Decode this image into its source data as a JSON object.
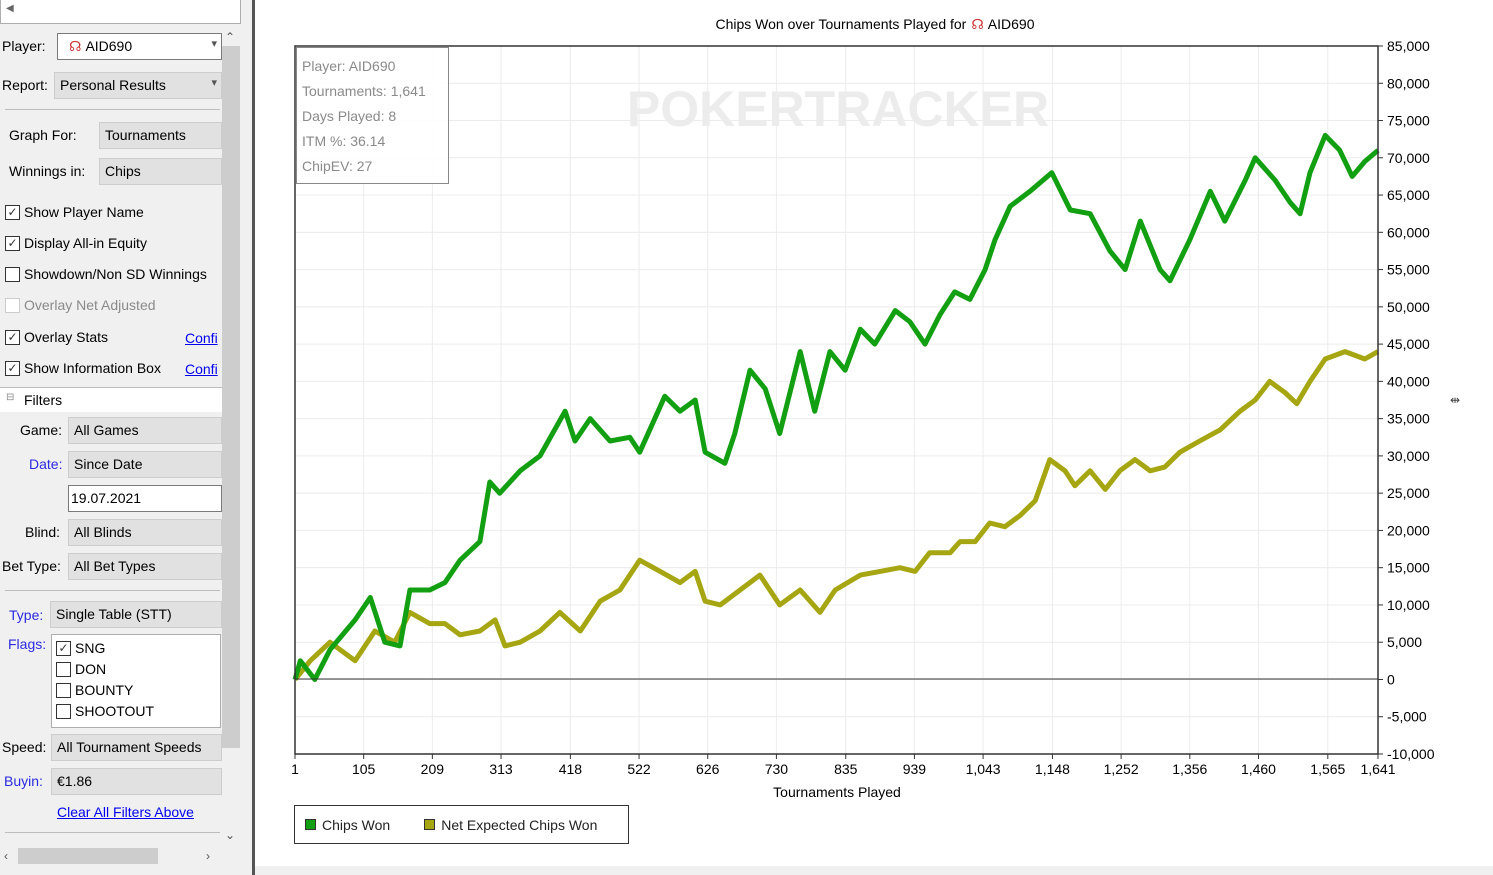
{
  "sidebar": {
    "player_label": "Player:",
    "player_value": "AID690",
    "report_label": "Report:",
    "report_value": "Personal Results",
    "graph_for_label": "Graph For:",
    "graph_for_value": "Tournaments",
    "winnings_in_label": "Winnings in:",
    "winnings_in_value": "Chips",
    "options": [
      {
        "label": "Show Player Name",
        "checked": true,
        "enabled": true
      },
      {
        "label": "Display All-in Equity",
        "checked": true,
        "enabled": true
      },
      {
        "label": "Showdown/Non SD Winnings",
        "checked": false,
        "enabled": true
      },
      {
        "label": "Overlay Net Adjusted",
        "checked": false,
        "enabled": false
      },
      {
        "label": "Overlay Stats",
        "checked": true,
        "enabled": true
      },
      {
        "label": "Show Information Box",
        "checked": true,
        "enabled": true
      }
    ],
    "configure_link": "Confi",
    "filters_header": "Filters",
    "game_label": "Game:",
    "game_value": "All Games",
    "date_label": "Date:",
    "date_value": "Since Date",
    "date_input": "19.07.2021",
    "blind_label": "Blind:",
    "blind_value": "All Blinds",
    "bet_type_label": "Bet Type:",
    "bet_type_value": "All Bet Types",
    "type_label": "Type:",
    "type_value": "Single Table (STT)",
    "flags_label": "Flags:",
    "flags": [
      {
        "label": "SNG",
        "checked": true
      },
      {
        "label": "DON",
        "checked": false
      },
      {
        "label": "BOUNTY",
        "checked": false
      },
      {
        "label": "SHOOTOUT",
        "checked": false
      }
    ],
    "speed_label": "Speed:",
    "speed_value": "All Tournament Speeds",
    "buyin_label": "Buyin:",
    "buyin_value": "€1.86",
    "clear_filters": "Clear All Filters Above"
  },
  "info_box": [
    "Player: AID690",
    "Tournaments: 1,641",
    "Days Played: 8",
    "ITM %: 36.14",
    "ChipEV: 27"
  ],
  "watermark": "POKERTRACKER",
  "colors": {
    "chips_won": "#12a012",
    "net_expected": "#a6a612"
  },
  "chart_data": {
    "type": "line",
    "title": "Chips Won over Tournaments Played for",
    "title_player": "AID690",
    "xlabel": "Tournaments Played",
    "ylabel": "",
    "xlim": [
      1,
      1641
    ],
    "ylim": [
      -10000,
      85000
    ],
    "xticks": [
      1,
      105,
      209,
      313,
      418,
      522,
      626,
      730,
      835,
      939,
      1043,
      1148,
      1252,
      1356,
      1460,
      1565,
      1641
    ],
    "xtick_labels": [
      "1",
      "105",
      "209",
      "313",
      "418",
      "522",
      "626",
      "730",
      "835",
      "939",
      "1,043",
      "1,148",
      "1,252",
      "1,356",
      "1,460",
      "1,565",
      "1,641"
    ],
    "yticks": [
      85000,
      80000,
      75000,
      70000,
      65000,
      60000,
      55000,
      50000,
      45000,
      40000,
      35000,
      30000,
      25000,
      20000,
      15000,
      10000,
      5000,
      0,
      -5000,
      -10000
    ],
    "ytick_labels": [
      "85,000",
      "80,000",
      "75,000",
      "70,000",
      "65,000",
      "60,000",
      "55,000",
      "50,000",
      "45,000",
      "40,000",
      "35,000",
      "30,000",
      "25,000",
      "20,000",
      "15,000",
      "10,000",
      "5,000",
      "0",
      "-5,000",
      "-10,000"
    ],
    "grid": true,
    "legend": "bottom-left",
    "series": [
      {
        "name": "Chips Won",
        "x": [
          1,
          9,
          31,
          54,
          92,
          115,
          137,
          160,
          175,
          205,
          228,
          251,
          281,
          296,
          311,
          342,
          372,
          410,
          425,
          448,
          478,
          508,
          523,
          561,
          584,
          607,
          622,
          652,
          667,
          690,
          713,
          735,
          766,
          788,
          811,
          834,
          857,
          879,
          910,
          932,
          955,
          978,
          1000,
          1023,
          1046,
          1061,
          1084,
          1114,
          1147,
          1175,
          1205,
          1235,
          1258,
          1281,
          1311,
          1326,
          1356,
          1387,
          1409,
          1440,
          1455,
          1485,
          1508,
          1523,
          1538,
          1561,
          1583,
          1602,
          1621,
          1641
        ],
        "y": [
          0,
          2500,
          0,
          4000,
          8000,
          11000,
          5000,
          4500,
          12000,
          12000,
          13000,
          16000,
          18500,
          26500,
          25000,
          28000,
          30000,
          36000,
          32000,
          35000,
          32000,
          32500,
          30500,
          38000,
          36000,
          37500,
          30500,
          29000,
          33000,
          41500,
          39000,
          33000,
          44000,
          36000,
          44000,
          41500,
          47000,
          45000,
          49500,
          48000,
          45000,
          49000,
          52000,
          51000,
          55000,
          59000,
          63500,
          65500,
          68000,
          63000,
          62500,
          57500,
          55000,
          61500,
          55000,
          53500,
          59000,
          65500,
          61500,
          67000,
          70000,
          67000,
          64000,
          62500,
          68000,
          73000,
          71000,
          67500,
          69500,
          71000
        ]
      },
      {
        "name": "Net Expected Chips Won",
        "x": [
          1,
          24,
          54,
          92,
          122,
          152,
          175,
          205,
          228,
          251,
          281,
          304,
          319,
          342,
          372,
          402,
          433,
          463,
          493,
          523,
          554,
          584,
          607,
          622,
          645,
          675,
          705,
          735,
          766,
          796,
          819,
          857,
          887,
          917,
          940,
          962,
          993,
          1008,
          1031,
          1053,
          1076,
          1099,
          1122,
          1144,
          1167,
          1182,
          1205,
          1228,
          1250,
          1273,
          1296,
          1318,
          1341,
          1371,
          1402,
          1432,
          1455,
          1477,
          1500,
          1518,
          1538,
          1561,
          1591,
          1621,
          1641
        ],
        "y": [
          0,
          2500,
          5000,
          2500,
          6500,
          5000,
          9000,
          7500,
          7500,
          6000,
          6500,
          8000,
          4500,
          5000,
          6500,
          9000,
          6500,
          10500,
          12000,
          16000,
          14500,
          13000,
          14500,
          10500,
          10000,
          12000,
          14000,
          10000,
          12000,
          9000,
          12000,
          14000,
          14500,
          15000,
          14500,
          17000,
          17000,
          18500,
          18500,
          21000,
          20500,
          22000,
          24000,
          29500,
          28000,
          26000,
          28000,
          25500,
          28000,
          29500,
          28000,
          28500,
          30500,
          32000,
          33500,
          36000,
          37500,
          40000,
          38500,
          37000,
          40000,
          43000,
          44000,
          43000,
          44000
        ]
      }
    ]
  }
}
